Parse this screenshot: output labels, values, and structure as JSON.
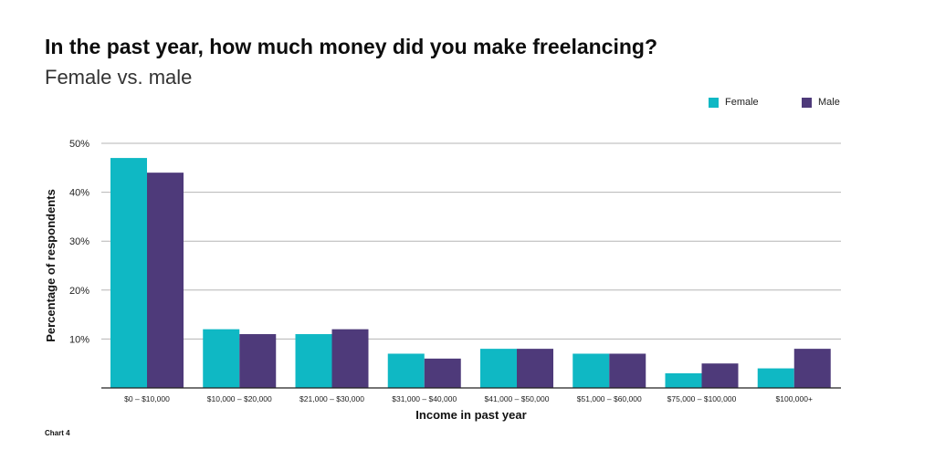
{
  "header": {
    "title": "In the past year, how much money did you make freelancing?",
    "subtitle": "Female vs. male"
  },
  "footer": {
    "caption": "Chart 4"
  },
  "colors": {
    "female": "#0fb8c4",
    "male": "#4e3a7a",
    "grid": "#b5b5b5",
    "axis": "#222222"
  },
  "chart_data": {
    "type": "bar",
    "categories": [
      "$0 – $10,000",
      "$10,000 – $20,000",
      "$21,000 – $30,000",
      "$31,000 – $40,000",
      "$41,000 – $50,000",
      "$51,000 – $60,000",
      "$75,000 – $100,000",
      "$100,000+"
    ],
    "series": [
      {
        "name": "Female",
        "values": [
          47,
          12,
          11,
          7,
          8,
          7,
          3,
          4
        ]
      },
      {
        "name": "Male",
        "values": [
          44,
          11,
          12,
          6,
          8,
          7,
          5,
          8
        ]
      }
    ],
    "title": "In the past year, how much money did you make freelancing?",
    "subtitle": "Female vs. male",
    "xlabel": "Income in past year",
    "ylabel": "Percentage of respondents",
    "ylim": [
      0,
      50
    ],
    "yticks": [
      10,
      20,
      30,
      40,
      50
    ],
    "ytick_labels": [
      "10%",
      "20%",
      "30%",
      "40%",
      "50%"
    ],
    "grid": true,
    "legend_position": "top-right"
  }
}
